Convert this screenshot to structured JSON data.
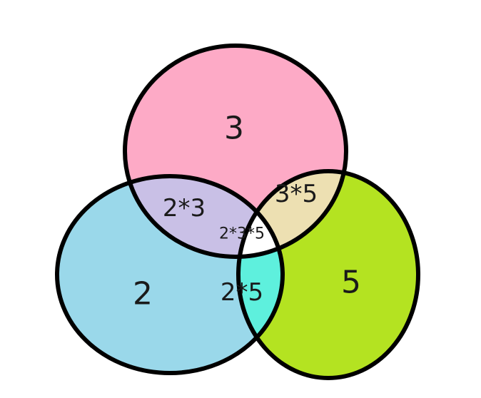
{
  "colors": {
    "set_3": "#fdaac6",
    "set_2": "#9ad8ea",
    "set_5": "#b4e321",
    "overlap_2_3": "#c9c0e6",
    "overlap_3_5": "#ede0b2",
    "overlap_2_5": "#5ef0dd",
    "overlap_all": "#ffffff",
    "outline": "#000000"
  },
  "labels": {
    "set_3": "3",
    "set_2": "2",
    "set_5": "5",
    "overlap_2_3": "2*3",
    "overlap_3_5": "3*5",
    "overlap_2_5": "2*5",
    "overlap_all": "2*3*5"
  }
}
